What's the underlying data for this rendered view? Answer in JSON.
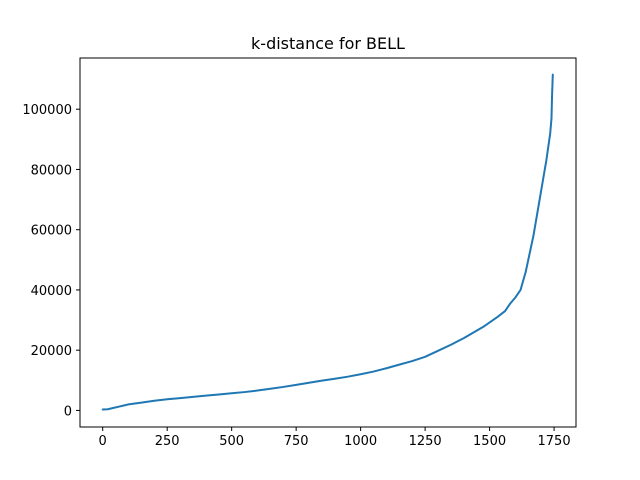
{
  "chart_data": {
    "type": "line",
    "title": "k-distance for BELL",
    "xlabel": "",
    "ylabel": "",
    "xlim": [
      -88,
      1835
    ],
    "ylim": [
      -5500,
      117000
    ],
    "xticks": [
      0,
      250,
      500,
      750,
      1000,
      1250,
      1500,
      1750
    ],
    "yticks": [
      0,
      20000,
      40000,
      60000,
      80000,
      100000
    ],
    "grid": false,
    "legend": "none",
    "series": [
      {
        "color": "#1f77b4",
        "x": [
          0,
          20,
          40,
          60,
          80,
          100,
          150,
          200,
          250,
          300,
          350,
          400,
          450,
          500,
          550,
          600,
          650,
          700,
          750,
          800,
          850,
          900,
          950,
          1000,
          1050,
          1100,
          1150,
          1200,
          1250,
          1300,
          1350,
          1400,
          1450,
          1480,
          1500,
          1530,
          1560,
          1580,
          1600,
          1620,
          1630,
          1640,
          1650,
          1660,
          1670,
          1680,
          1690,
          1700,
          1710,
          1715,
          1720,
          1725,
          1730,
          1735,
          1740,
          1742,
          1745
        ],
        "values": [
          300,
          400,
          800,
          1200,
          1600,
          2000,
          2600,
          3200,
          3700,
          4100,
          4500,
          4900,
          5300,
          5700,
          6100,
          6600,
          7200,
          7800,
          8500,
          9200,
          9900,
          10500,
          11200,
          12000,
          12900,
          14000,
          15200,
          16400,
          17800,
          19800,
          21800,
          24000,
          26500,
          28000,
          29200,
          31000,
          33000,
          35500,
          37500,
          40000,
          43000,
          46000,
          50000,
          54000,
          58000,
          63000,
          68000,
          73000,
          78000,
          80500,
          83000,
          86000,
          89000,
          92000,
          97000,
          104000,
          111500
        ]
      }
    ]
  }
}
